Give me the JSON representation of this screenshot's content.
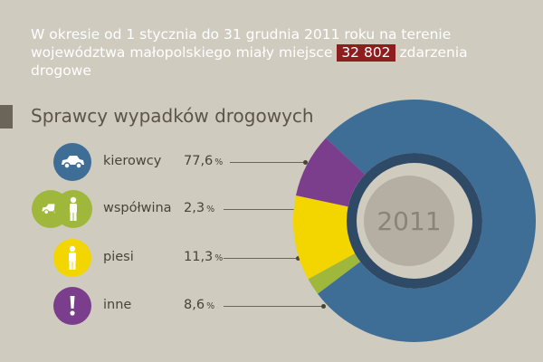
{
  "intro": {
    "text_before": "W okresie od 1 stycznia do 31 grudnia 2011 roku na terenie województwa małopolskiego miały miejsce",
    "highlight": "32 802",
    "text_after": "zdarzenia drogowe"
  },
  "heading": "Sprawcy wypadków drogowych",
  "colors": {
    "kierowcy": "#3e6e96",
    "wspolwina": "#9fb83c",
    "piesi": "#f3d500",
    "inne": "#7a3e8c",
    "accent": "#8e1d1e"
  },
  "items": [
    {
      "label": "kierowcy",
      "value": "77,6",
      "unit": "%",
      "icon": "car-icon"
    },
    {
      "label": "współwina",
      "value": "2,3",
      "unit": "%",
      "icon": "car-and-person-icon"
    },
    {
      "label": "piesi",
      "value": "11,3",
      "unit": "%",
      "icon": "person-icon"
    },
    {
      "label": "inne",
      "value": "8,6",
      "unit": "%",
      "icon": "exclamation-icon"
    }
  ],
  "chart_data": {
    "type": "pie",
    "variant": "donut",
    "center_label": "2011",
    "categories": [
      "kierowcy",
      "współwina",
      "piesi",
      "inne"
    ],
    "values": [
      77.6,
      2.3,
      11.3,
      8.6
    ],
    "unit": "%"
  }
}
